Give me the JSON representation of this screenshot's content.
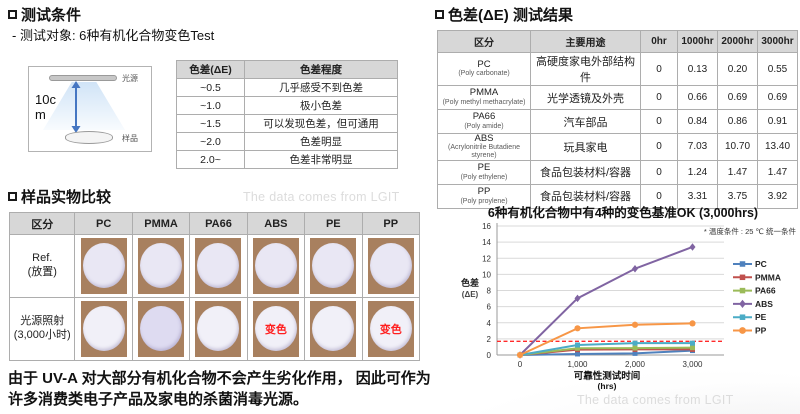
{
  "left": {
    "section1_title": "测试条件",
    "section1_sub": "-  测试对象: 6种有机化合物变色Test",
    "diagram": {
      "light_source_label": "光源",
      "distance_label": "10cm",
      "sample_label": "样品"
    },
    "delta_e_table": {
      "headers": [
        "色差(ΔE)",
        "色差程度"
      ],
      "rows": [
        [
          "~0.5",
          "几乎感受不到色差"
        ],
        [
          "~1.0",
          "极小色差"
        ],
        [
          "~1.5",
          "可以发现色差，但可通用"
        ],
        [
          "~2.0",
          "色差明显"
        ],
        [
          "2.0~",
          "色差非常明显"
        ]
      ]
    },
    "section2_title": "样品实物比较",
    "watermark": "The data comes from LGIT",
    "sample_table": {
      "headers": [
        "区分",
        "PC",
        "PMMA",
        "PA66",
        "ABS",
        "PE",
        "PP"
      ],
      "rows": [
        {
          "label": "Ref.",
          "label2": "(放置)"
        },
        {
          "label": "光源照射",
          "label2": "(3,000小时)"
        }
      ],
      "changed_label": "变色",
      "changed_columns_row2": [
        "ABS",
        "PP"
      ]
    },
    "conclusion": "由于 UV-A 对大部分有机化合物不会产生劣化作用， 因此可作为许多消费类电子产品及家电的杀菌消毒光源。"
  },
  "right": {
    "section_title": "色差(ΔE) 测试结果",
    "results_table": {
      "headers": [
        "区分",
        "主要用途",
        "0hr",
        "1000hr",
        "2000hr",
        "3000hr"
      ],
      "rows": [
        {
          "name": "PC",
          "full": "(Poly carbonate)",
          "use": "高硬度家电外部结构件",
          "values": [
            "0",
            "0.13",
            "0.20",
            "0.55"
          ],
          "color": "blue"
        },
        {
          "name": "PMMA",
          "full": "(Poly methyl methacrylate)",
          "use": "光学透镜及外壳",
          "values": [
            "0",
            "0.66",
            "0.69",
            "0.69"
          ],
          "color": "blue"
        },
        {
          "name": "PA66",
          "full": "(Poly amide)",
          "use": "汽车部品",
          "values": [
            "0",
            "0.84",
            "0.86",
            "0.91"
          ],
          "color": "blue"
        },
        {
          "name": "ABS",
          "full": "(Acrylonitrile Butadiene styrene)",
          "use": "玩具家电",
          "values": [
            "0",
            "7.03",
            "10.70",
            "13.40"
          ],
          "color": "red"
        },
        {
          "name": "PE",
          "full": "(Poly ethylene)",
          "use": "食品包装材料/容器",
          "values": [
            "0",
            "1.24",
            "1.47",
            "1.47"
          ],
          "color": "blue"
        },
        {
          "name": "PP",
          "full": "(Poly proylene)",
          "use": "食品包装材料/容器",
          "values": [
            "0",
            "3.31",
            "3.75",
            "3.92"
          ],
          "color": "red"
        }
      ]
    },
    "caption": "6种有机化合物中有4种的变色基准OK (3,000hrs)",
    "watermark": "The data comes from LGIT"
  },
  "chart_data": {
    "type": "line",
    "x": [
      0,
      1000,
      2000,
      3000
    ],
    "x_tick_labels": [
      "0",
      "1,000",
      "2,000",
      "3,000"
    ],
    "series": [
      {
        "name": "PC",
        "color": "#4F81BD",
        "marker": "square",
        "values": [
          0,
          0.13,
          0.2,
          0.55
        ]
      },
      {
        "name": "PMMA",
        "color": "#C0504D",
        "marker": "square",
        "values": [
          0,
          0.66,
          0.69,
          0.69
        ]
      },
      {
        "name": "PA66",
        "color": "#9BBB59",
        "marker": "square",
        "values": [
          0,
          0.84,
          0.86,
          0.91
        ]
      },
      {
        "name": "ABS",
        "color": "#8064A2",
        "marker": "diamond",
        "values": [
          0,
          7.03,
          10.7,
          13.4
        ]
      },
      {
        "name": "PE",
        "color": "#4BACC6",
        "marker": "square",
        "values": [
          0,
          1.24,
          1.47,
          1.47
        ]
      },
      {
        "name": "PP",
        "color": "#F79646",
        "marker": "circle",
        "values": [
          0,
          3.31,
          3.75,
          3.92
        ]
      }
    ],
    "ylabel_line1": "色差",
    "ylabel_line2": "(ΔE)",
    "xlabel_line1": "可靠性测试时间",
    "xlabel_line2": "(hrs)",
    "ylim": [
      0,
      16
    ],
    "ytick_step": 2,
    "threshold": 1.7,
    "threshold_color": "#FF2A2A",
    "annotation": "* 温度条件 : 25 ℃ 统一条件",
    "grid": true,
    "legend_position": "right"
  }
}
